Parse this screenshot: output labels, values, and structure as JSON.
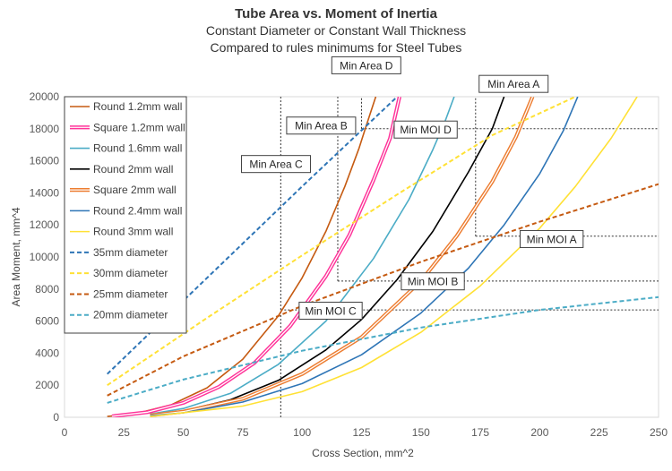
{
  "chart_data": {
    "type": "line",
    "title": "Tube Area vs. Moment of Inertia",
    "subtitle_lines": [
      "Constant Diameter or Constant Wall Thickness",
      "Compared to rules minimums for Steel Tubes"
    ],
    "xlabel": "Cross Section, mm^2",
    "ylabel": "Area Moment, mm^4",
    "xlim": [
      0,
      250
    ],
    "ylim": [
      0,
      20000
    ],
    "xticks": [
      0,
      25,
      50,
      75,
      100,
      125,
      150,
      175,
      200,
      225,
      250
    ],
    "yticks": [
      0,
      2000,
      4000,
      6000,
      8000,
      10000,
      12000,
      14000,
      16000,
      18000,
      20000
    ],
    "legend_position": "top-left",
    "series": [
      {
        "name": "Round 1.2mm wall",
        "color": "#c55a11",
        "style": "solid",
        "x": [
          18,
          30,
          45,
          60,
          75,
          90,
          100,
          110,
          118,
          124,
          127,
          131
        ],
        "y": [
          50,
          230,
          780,
          1840,
          3620,
          6330,
          8700,
          11600,
          14400,
          16800,
          18200,
          20000
        ]
      },
      {
        "name": "Square 1.2mm wall",
        "color": "#ff3399",
        "style": "double",
        "x": [
          20,
          35,
          50,
          65,
          80,
          95,
          110,
          120,
          130,
          137,
          141
        ],
        "y": [
          60,
          320,
          900,
          1900,
          3400,
          5700,
          8800,
          11400,
          14800,
          17400,
          20000
        ]
      },
      {
        "name": "Round 1.6mm wall",
        "color": "#4bacc6",
        "style": "solid",
        "x": [
          36,
          50,
          70,
          90,
          110,
          130,
          145,
          155,
          160,
          164
        ],
        "y": [
          200,
          550,
          1500,
          3300,
          6000,
          9900,
          13600,
          16700,
          18400,
          20000
        ]
      },
      {
        "name": "Round 2mm wall",
        "color": "#000000",
        "style": "solid",
        "x": [
          36,
          50,
          70,
          90,
          110,
          125,
          140,
          155,
          170,
          180,
          185
        ],
        "y": [
          150,
          400,
          1100,
          2300,
          4200,
          6100,
          8600,
          11600,
          15300,
          18000,
          20000
        ]
      },
      {
        "name": "Square 2mm wall",
        "color": "#ed7d31",
        "style": "double",
        "x": [
          36,
          50,
          75,
          100,
          125,
          150,
          165,
          180,
          190,
          197
        ],
        "y": [
          120,
          350,
          1150,
          2700,
          5000,
          8500,
          11300,
          14700,
          17500,
          20000
        ]
      },
      {
        "name": "Round 2.4mm wall",
        "color": "#2e75b6",
        "style": "solid",
        "x": [
          36,
          50,
          75,
          100,
          125,
          150,
          170,
          185,
          200,
          210,
          216
        ],
        "y": [
          100,
          280,
          950,
          2100,
          3900,
          6500,
          9300,
          12000,
          15200,
          17900,
          20000
        ]
      },
      {
        "name": "Round 3mm wall",
        "color": "#ffe135",
        "style": "solid",
        "x": [
          36,
          75,
          100,
          125,
          150,
          175,
          200,
          215,
          230,
          241
        ],
        "y": [
          50,
          700,
          1600,
          3100,
          5300,
          8200,
          11800,
          14400,
          17400,
          20000
        ]
      },
      {
        "name": "35mm diameter",
        "color": "#2e75b6",
        "style": "dashed",
        "x": [
          18,
          60,
          100,
          140
        ],
        "y": [
          2700,
          8700,
          14400,
          20000
        ]
      },
      {
        "name": "30mm diameter",
        "color": "#ffe135",
        "style": "dashed",
        "x": [
          18,
          60,
          100,
          140,
          180,
          215
        ],
        "y": [
          2000,
          6200,
          10100,
          13900,
          17600,
          20000
        ]
      },
      {
        "name": "25mm diameter",
        "color": "#c55a11",
        "style": "dashed",
        "x": [
          18,
          50,
          100,
          150,
          200,
          250
        ],
        "y": [
          1350,
          3800,
          6950,
          9700,
          12200,
          14550
        ]
      },
      {
        "name": "20mm diameter",
        "color": "#4bacc6",
        "style": "dashed",
        "x": [
          18,
          50,
          100,
          150,
          200,
          250
        ],
        "y": [
          900,
          2350,
          4150,
          5600,
          6700,
          7500
        ]
      }
    ],
    "reference_points": [
      {
        "label": "Min Area A",
        "x": 173
      },
      {
        "label": "Min Area B",
        "x": 115
      },
      {
        "label": "Min Area C",
        "x": 91
      },
      {
        "label": "Min Area D",
        "x": 125
      },
      {
        "label": "Min MOI A",
        "y": 11300
      },
      {
        "label": "Min MOI B",
        "y": 8500
      },
      {
        "label": "Min MOI C",
        "y": 6700
      },
      {
        "label": "Min MOI D",
        "y": 18000
      }
    ],
    "reference_lines": [
      {
        "x": [
          91,
          91
        ],
        "y": [
          0,
          20000
        ]
      },
      {
        "x": [
          91,
          250
        ],
        "y": [
          6700,
          6700
        ]
      },
      {
        "x": [
          115,
          115
        ],
        "y": [
          8500,
          20000
        ]
      },
      {
        "x": [
          115,
          250
        ],
        "y": [
          8500,
          8500
        ]
      },
      {
        "x": [
          125,
          125
        ],
        "y": [
          18000,
          20000
        ]
      },
      {
        "x": [
          125,
          250
        ],
        "y": [
          18000,
          18000
        ]
      },
      {
        "x": [
          173,
          173
        ],
        "y": [
          11300,
          20000
        ]
      },
      {
        "x": [
          173,
          250
        ],
        "y": [
          11300,
          11300
        ]
      }
    ],
    "callout_anchors": {
      "Min Area A": [
        189,
        20800
      ],
      "Min Area B": [
        108,
        18200
      ],
      "Min Area C": [
        89,
        15800
      ],
      "Min Area D": [
        127,
        21960
      ],
      "Min MOI A": [
        205,
        11120
      ],
      "Min MOI B": [
        155,
        8480
      ],
      "Min MOI C": [
        112,
        6650
      ],
      "Min MOI D": [
        152,
        17950
      ]
    }
  }
}
